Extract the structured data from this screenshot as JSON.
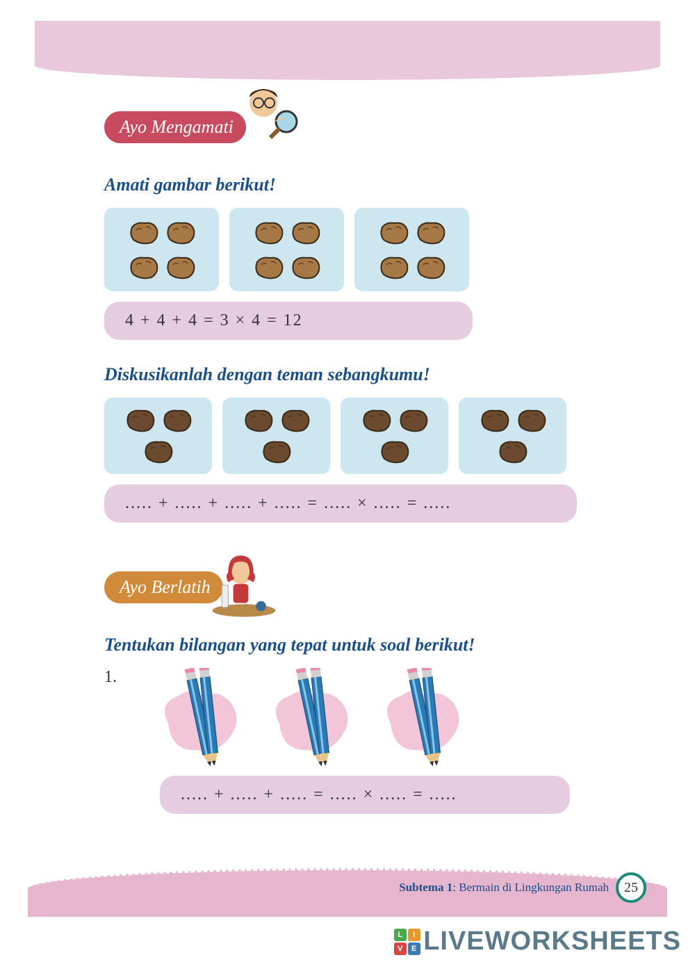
{
  "colors": {
    "top_band": "#e9c8db",
    "bottom_band": "#e6b6cf",
    "badge1_bg": "#c84a5e",
    "badge2_bg": "#d18a3a",
    "heading": "#1b4f8a",
    "tile_bg": "#cde6ef",
    "eq_bg": "#e6cce1",
    "rock1_fill": "#a67845",
    "rock2_fill": "#6b4a30",
    "pencil_blue": "#2a7ab8",
    "pencil_blob": "#f2c5d9",
    "page_ring": "#1a8a7a"
  },
  "section1": {
    "badge_label": "Ayo Mengamati",
    "heading": "Amati gambar berikut!",
    "example_groups": 3,
    "example_per_group": 4,
    "equation": "4  +  4  +  4   =   3 × 4   =   12",
    "subheading": "Diskusikanlah dengan teman sebangkumu!",
    "exercise_groups": 4,
    "exercise_per_group": 3,
    "blank_equation": ".....   +   .....   +   .....   +   .....    =    ..... × .....    =    ....."
  },
  "section2": {
    "badge_label": "Ayo Berlatih",
    "heading": "Tentukan bilangan yang tepat untuk soal berikut!",
    "q_number": "1.",
    "pencil_groups": 3,
    "pencils_per_group": 2,
    "blank_equation": ".....   +   .....   +   .....    =    ..... × .....    =    ....."
  },
  "footer": {
    "subtema_bold": "Subtema 1",
    "subtema_rest": ": Bermain di Lingkungan Rumah",
    "page": "25"
  },
  "watermark": {
    "text": "LIVEWORKSHEETS",
    "logo_cells": [
      {
        "t": "L",
        "c": "#4aa84a"
      },
      {
        "t": "I",
        "c": "#e8982e"
      },
      {
        "t": "V",
        "c": "#d94545"
      },
      {
        "t": "E",
        "c": "#3a7ab8"
      }
    ]
  }
}
